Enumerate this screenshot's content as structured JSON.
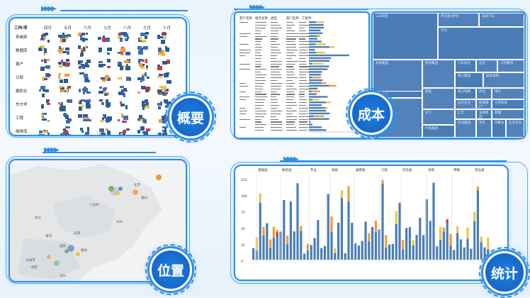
{
  "overview": {
    "badge": "概要",
    "months": [
      "四月",
      "五月",
      "六月",
      "七月",
      "八月",
      "九月",
      "十月"
    ],
    "row_header": "工种/项",
    "rows": [
      "系统部",
      "数据库",
      "客户",
      "分部",
      "摄影社",
      "东方学",
      "工程",
      "咖啡库"
    ]
  },
  "cost": {
    "badge": "成本",
    "table_headers": [
      "客户名称",
      "服务名称",
      "类型",
      "部门名称",
      "工程师"
    ],
    "treemap_labels": [
      "山东制造",
      "河北省(合作)",
      "未来汽车",
      "河北",
      "本地集团",
      "物流集团",
      "汽车研究",
      "北京",
      "人代集团",
      "南方集团",
      "成本机构",
      "西安",
      "南方电网",
      "河北",
      "南京",
      "中国企业",
      "北方企业",
      "研发部门",
      "江苏科技",
      "天下",
      "汇丰",
      "金融集团",
      "新疆",
      "石油",
      "中电集团",
      "华北集团",
      "华东",
      "内蒙古",
      "北方石化",
      "西部",
      "中化",
      "东北"
    ]
  },
  "location": {
    "badge": "位置",
    "cities": [
      "八达岭",
      "北京",
      "通州",
      "大兴",
      "房山",
      "天津",
      "固安",
      "廊坊",
      "香河",
      "大城市",
      "保定",
      "沧州"
    ]
  },
  "stats": {
    "badge": "统计",
    "groups": [
      "基础类",
      "联合类",
      "专业",
      "高级",
      "通用类",
      "工程",
      "综合类",
      "合格",
      "特殊",
      "定位类"
    ],
    "y_ticks": [
      "125",
      "100",
      "75",
      "50",
      "25",
      "0"
    ]
  }
}
